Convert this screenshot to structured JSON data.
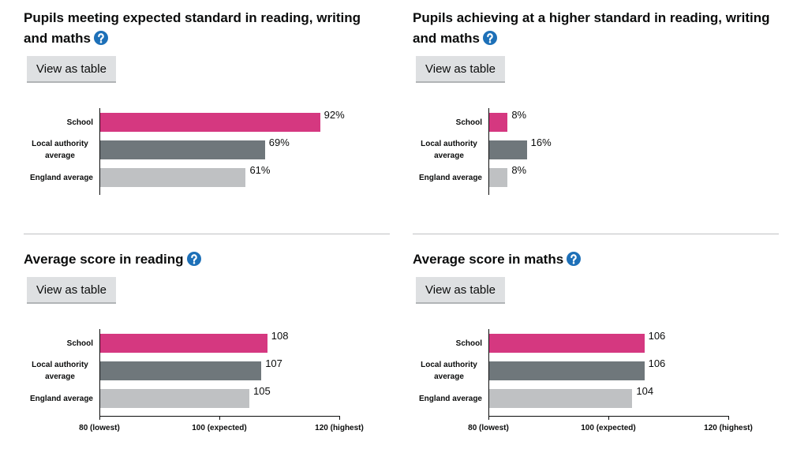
{
  "chart_data": [
    {
      "type": "bar",
      "title": "Pupils meeting expected standard in reading, writing and maths",
      "button": "View as table",
      "categories": [
        "School",
        "Local authority average",
        "England average"
      ],
      "values": [
        92,
        69,
        61
      ],
      "value_labels": [
        "92%",
        "69%",
        "61%"
      ],
      "colors": [
        "#d53880",
        "#6f777b",
        "#bfc1c3"
      ],
      "xlim": [
        0,
        100
      ]
    },
    {
      "type": "bar",
      "title": "Pupils achieving at a higher standard in reading, writing and maths",
      "button": "View as table",
      "categories": [
        "School",
        "Local authority average",
        "England average"
      ],
      "values": [
        8,
        16,
        8
      ],
      "value_labels": [
        "8%",
        "16%",
        "8%"
      ],
      "colors": [
        "#d53880",
        "#6f777b",
        "#bfc1c3"
      ],
      "xlim": [
        0,
        100
      ]
    },
    {
      "type": "bar",
      "title": "Average score in reading",
      "button": "View as table",
      "categories": [
        "School",
        "Local authority average",
        "England average"
      ],
      "values": [
        108,
        107,
        105
      ],
      "colors": [
        "#d53880",
        "#6f777b",
        "#bfc1c3"
      ],
      "xlim": [
        80,
        120
      ],
      "xticks": [
        {
          "value": 80,
          "label": "80 (lowest)"
        },
        {
          "value": 100,
          "label": "100 (expected)"
        },
        {
          "value": 120,
          "label": "120 (highest)"
        }
      ]
    },
    {
      "type": "bar",
      "title": "Average score in maths",
      "button": "View as table",
      "categories": [
        "School",
        "Local authority average",
        "England average"
      ],
      "values": [
        106,
        106,
        104
      ],
      "colors": [
        "#d53880",
        "#6f777b",
        "#bfc1c3"
      ],
      "xlim": [
        80,
        120
      ],
      "xticks": [
        {
          "value": 80,
          "label": "80 (lowest)"
        },
        {
          "value": 100,
          "label": "100 (expected)"
        },
        {
          "value": 120,
          "label": "120 (highest)"
        }
      ]
    }
  ]
}
